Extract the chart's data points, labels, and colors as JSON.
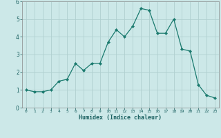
{
  "x": [
    0,
    1,
    2,
    3,
    4,
    5,
    6,
    7,
    8,
    9,
    10,
    11,
    12,
    13,
    14,
    15,
    16,
    17,
    18,
    19,
    20,
    21,
    22,
    23
  ],
  "y": [
    1.0,
    0.9,
    0.9,
    1.0,
    1.5,
    1.6,
    2.5,
    2.1,
    2.5,
    2.5,
    3.7,
    4.4,
    4.0,
    4.6,
    5.6,
    5.5,
    4.2,
    4.2,
    5.0,
    3.3,
    3.2,
    1.3,
    0.7,
    0.55
  ],
  "xlabel": "Humidex (Indice chaleur)",
  "line_color": "#1a7a6e",
  "marker_color": "#1a7a6e",
  "bg_color": "#cce8e8",
  "grid_color": "#b0d0d0",
  "axis_label_color": "#1a6060",
  "ylim": [
    0,
    6
  ],
  "xlim": [
    -0.5,
    23.5
  ],
  "yticks": [
    0,
    1,
    2,
    3,
    4,
    5,
    6
  ],
  "xtick_labels": [
    "0",
    "1",
    "2",
    "3",
    "4",
    "5",
    "6",
    "7",
    "8",
    "9",
    "10",
    "11",
    "12",
    "13",
    "14",
    "15",
    "16",
    "17",
    "18",
    "19",
    "20",
    "21",
    "22",
    "23"
  ]
}
